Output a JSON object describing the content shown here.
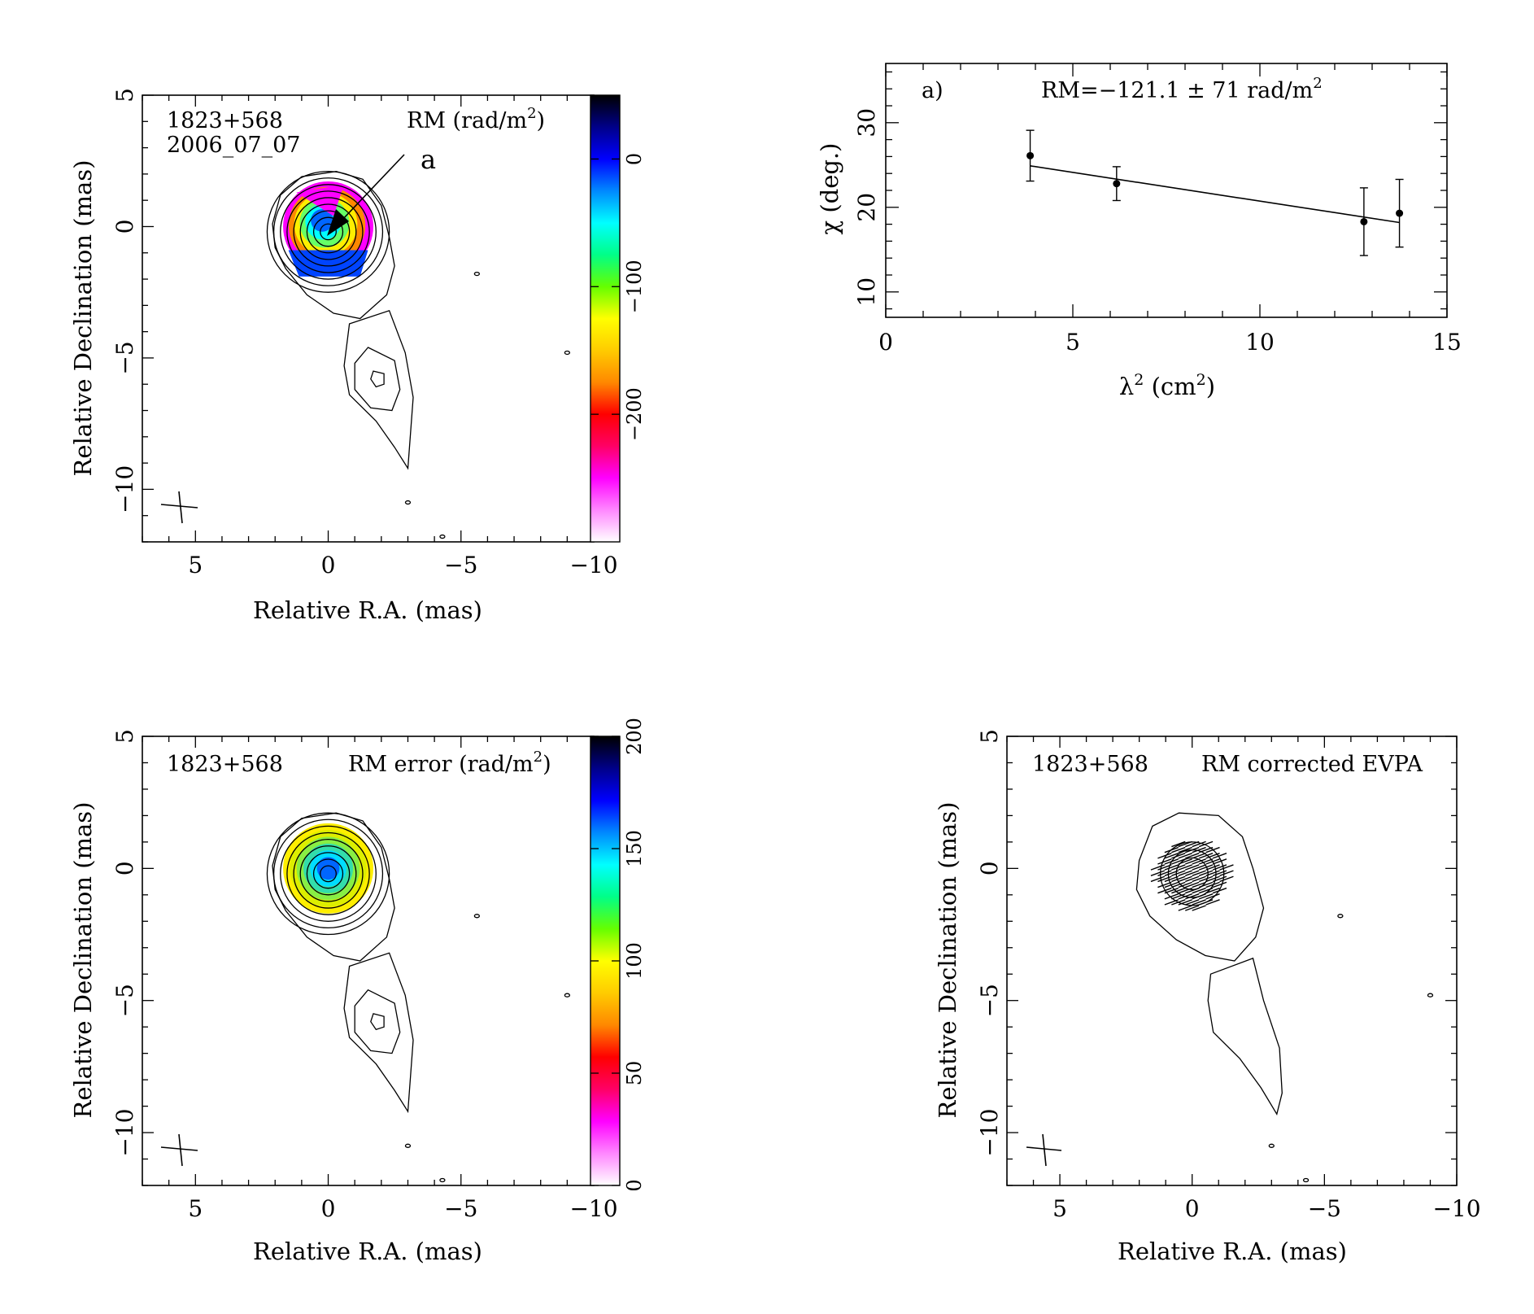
{
  "chart_data": [
    {
      "id": "rm_map",
      "type": "heatmap",
      "source_label": "1823+568",
      "epoch_label": "2006_07_07",
      "map_label": "RM (rad/m",
      "map_label_exp": "2",
      "map_label_tail": ")",
      "region_label": "a",
      "xlabel": "Relative R.A. (mas)",
      "ylabel": "Relative Declination (mas)",
      "xlim": [
        7,
        -10
      ],
      "ylim": [
        -12,
        5
      ],
      "xticks": [
        {
          "v": 5,
          "t": "5"
        },
        {
          "v": 0,
          "t": "0"
        },
        {
          "v": -5,
          "t": "−5"
        },
        {
          "v": -10,
          "t": "−10"
        }
      ],
      "yticks": [
        {
          "v": 5,
          "t": "5"
        },
        {
          "v": 0,
          "t": "0"
        },
        {
          "v": -5,
          "t": "−5"
        },
        {
          "v": -10,
          "t": "−10"
        }
      ],
      "colorbar": {
        "min": -300,
        "max": 50,
        "ticks": [
          {
            "v": 0,
            "t": "0"
          },
          {
            "v": -100,
            "t": "−100"
          },
          {
            "v": -200,
            "t": "−200"
          }
        ],
        "stops": [
          "#ffffff",
          "#ff88ff",
          "#ff00ff",
          "#ff0066",
          "#ff0000",
          "#ff8800",
          "#ffcc00",
          "#ffff00",
          "#66ff00",
          "#00ff88",
          "#00ffff",
          "#0088ff",
          "#0000ff",
          "#000088",
          "#000000"
        ]
      },
      "patch_colors": [
        "#ff00ff",
        "#ff8800",
        "#ffee00",
        "#66ff66",
        "#00ffff",
        "#0066ff"
      ]
    },
    {
      "id": "rm_fit",
      "type": "scatter",
      "panel_label": "a)",
      "fit_label": "RM=−121.1 ± 71 rad/m",
      "fit_label_exp": "2",
      "xlabel_pre": "λ",
      "xlabel_exp": "2",
      "xlabel_post": " (cm",
      "xlabel_exp2": "2",
      "xlabel_close": ")",
      "ylabel": "χ (deg.)",
      "xlim": [
        0,
        15
      ],
      "ylim": [
        7,
        37
      ],
      "xticks": [
        {
          "v": 0,
          "t": "0"
        },
        {
          "v": 5,
          "t": "5"
        },
        {
          "v": 10,
          "t": "10"
        },
        {
          "v": 15,
          "t": "15"
        }
      ],
      "yticks": [
        {
          "v": 10,
          "t": "10"
        },
        {
          "v": 20,
          "t": "20"
        },
        {
          "v": 30,
          "t": "30"
        }
      ],
      "points": [
        {
          "x": 3.86,
          "y": 26.1,
          "err": 3.0
        },
        {
          "x": 6.17,
          "y": 22.8,
          "err": 2.0
        },
        {
          "x": 12.78,
          "y": 18.3,
          "err": 4.0
        },
        {
          "x": 13.73,
          "y": 19.3,
          "err": 4.0
        }
      ],
      "fit_line": [
        {
          "x": 3.86,
          "y": 24.9
        },
        {
          "x": 13.73,
          "y": 18.2
        }
      ]
    },
    {
      "id": "rm_err_map",
      "type": "heatmap",
      "source_label": "1823+568",
      "map_label": "RM error (rad/m",
      "map_label_exp": "2",
      "map_label_tail": ")",
      "xlabel": "Relative R.A. (mas)",
      "ylabel": "Relative Declination (mas)",
      "xlim": [
        7,
        -10
      ],
      "ylim": [
        -12,
        5
      ],
      "xticks": [
        {
          "v": 5,
          "t": "5"
        },
        {
          "v": 0,
          "t": "0"
        },
        {
          "v": -5,
          "t": "−5"
        },
        {
          "v": -10,
          "t": "−10"
        }
      ],
      "yticks": [
        {
          "v": 5,
          "t": "5"
        },
        {
          "v": 0,
          "t": "0"
        },
        {
          "v": -5,
          "t": "−5"
        },
        {
          "v": -10,
          "t": "−10"
        }
      ],
      "colorbar": {
        "min": 0,
        "max": 200,
        "ticks": [
          {
            "v": 0,
            "t": "0"
          },
          {
            "v": 50,
            "t": "50"
          },
          {
            "v": 100,
            "t": "100"
          },
          {
            "v": 150,
            "t": "150"
          },
          {
            "v": 200,
            "t": "200"
          }
        ],
        "stops": [
          "#ffffff",
          "#ff88ff",
          "#ff00ff",
          "#ff0066",
          "#ff0000",
          "#ff8800",
          "#ffcc00",
          "#ffff00",
          "#66ff00",
          "#00ff88",
          "#00ffff",
          "#0088ff",
          "#0000ff",
          "#000088",
          "#000000"
        ]
      },
      "patch_colors": [
        "#ffee00",
        "#ddee00",
        "#88ee44",
        "#33ddaa",
        "#00ddff",
        "#0066ff"
      ]
    },
    {
      "id": "evpa_map",
      "type": "heatmap",
      "source_label": "1823+568",
      "map_label": "RM corrected EVPA",
      "xlabel": "Relative R.A. (mas)",
      "ylabel": "Relative Declination (mas)",
      "xlim": [
        7,
        -10
      ],
      "ylim": [
        -12,
        5
      ],
      "xticks": [
        {
          "v": 5,
          "t": "5"
        },
        {
          "v": 0,
          "t": "0"
        },
        {
          "v": -5,
          "t": "−5"
        },
        {
          "v": -10,
          "t": "−10"
        }
      ],
      "yticks": [
        {
          "v": 5,
          "t": "5"
        },
        {
          "v": 0,
          "t": "0"
        },
        {
          "v": -5,
          "t": "−5"
        },
        {
          "v": -10,
          "t": "−10"
        }
      ]
    }
  ]
}
